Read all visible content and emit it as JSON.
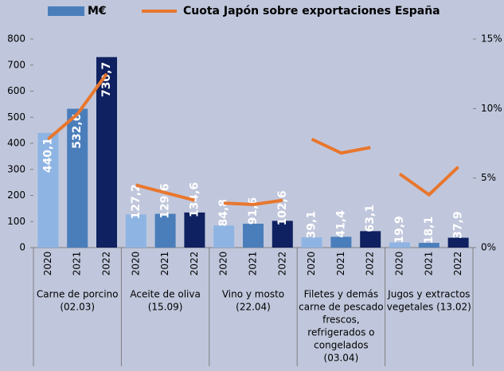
{
  "chart_data": {
    "type": "bar-line",
    "groups": [
      {
        "label": [
          "Carne de porcino",
          "(02.03)"
        ],
        "categories": [
          "2020",
          "2021",
          "2022"
        ]
      },
      {
        "label": [
          "Aceite de  oliva",
          "(15.09)"
        ],
        "categories": [
          "2020",
          "2021",
          "2022"
        ]
      },
      {
        "label": [
          "Vino y mosto",
          "(22.04)"
        ],
        "categories": [
          "2020",
          "2021",
          "2022"
        ]
      },
      {
        "label": [
          "Filetes y demás",
          "carne de pescado",
          "frescos,",
          "refrigerados o",
          "congelados",
          "(03.04)"
        ],
        "categories": [
          "2020",
          "2021",
          "2022"
        ]
      },
      {
        "label": [
          "Jugos y extractos",
          "vegetales (13.02)"
        ],
        "categories": [
          "2020",
          "2021",
          "2022"
        ]
      }
    ],
    "series": [
      {
        "name": "M€",
        "type": "bar",
        "color": "#4a7ebb",
        "bar_colors": [
          "#8eb4e3",
          "#4a7ebb",
          "#0f2160"
        ],
        "values": [
          440.1,
          532.6,
          730.7,
          127.2,
          129.6,
          134.6,
          84.8,
          91.6,
          102.6,
          39.1,
          41.4,
          63.1,
          19.9,
          18.1,
          37.9
        ],
        "value_labels": [
          "440,1",
          "532,6",
          "730,7",
          "127,2",
          "129,6",
          "134,6",
          "84,8",
          "91,6",
          "102,6",
          "39,1",
          "41,4",
          "63,1",
          "19,9",
          "18,1",
          "37,9"
        ]
      },
      {
        "name": "Cuota Japón sobre exportaciones España",
        "type": "line",
        "color": "#e8772e",
        "axis": "y2",
        "values": [
          7.8,
          9.6,
          12.5,
          4.5,
          3.95,
          3.4,
          3.2,
          3.1,
          3.4,
          7.8,
          6.8,
          7.2,
          5.3,
          3.8,
          5.8
        ]
      }
    ],
    "ylim": [
      0,
      800
    ],
    "yticks": [
      0,
      100,
      200,
      300,
      400,
      500,
      600,
      700,
      800
    ],
    "y2lim": [
      0,
      15
    ],
    "y2ticks": [
      {
        "value": 0,
        "label": "0%"
      },
      {
        "value": 5,
        "label": "5%"
      },
      {
        "value": 10,
        "label": "10%"
      },
      {
        "value": 15,
        "label": "15%"
      }
    ]
  }
}
